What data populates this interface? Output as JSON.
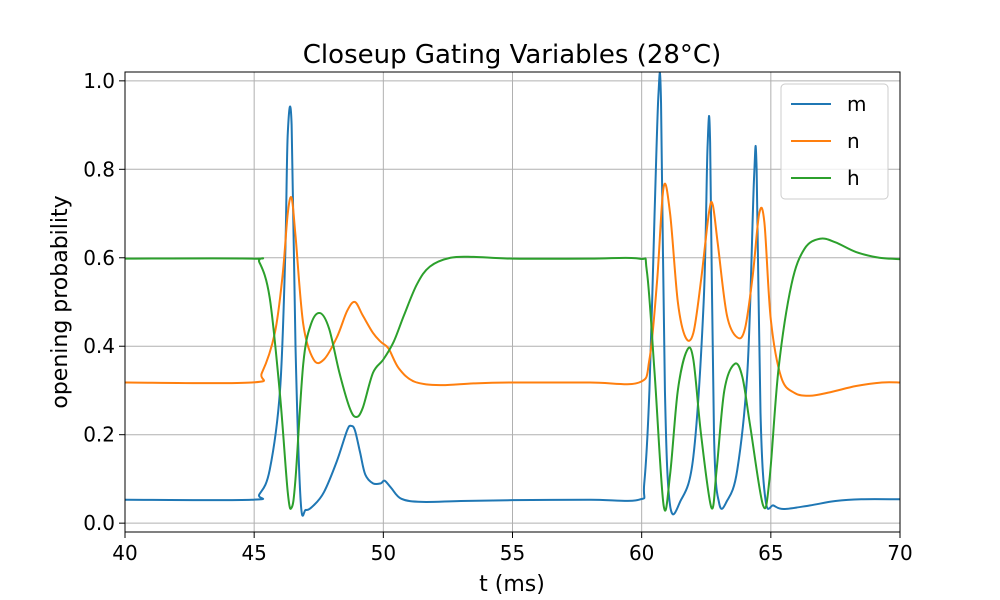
{
  "chart_data": {
    "type": "line",
    "title": "Closeup Gating Variables (28°C)",
    "xlabel": "t (ms)",
    "ylabel": "opening probability",
    "xlim": [
      40,
      70
    ],
    "ylim": [
      -0.02,
      1.02
    ],
    "xticks": [
      40,
      45,
      50,
      55,
      60,
      65,
      70
    ],
    "xtick_labels": [
      "40",
      "45",
      "50",
      "55",
      "60",
      "65",
      "70"
    ],
    "yticks": [
      0.0,
      0.2,
      0.4,
      0.6,
      0.8,
      1.0
    ],
    "ytick_labels": [
      "0.0",
      "0.2",
      "0.4",
      "0.6",
      "0.8",
      "1.0"
    ],
    "grid": true,
    "legend_position": "top-right",
    "series": [
      {
        "name": "m",
        "color": "#1f77b4",
        "x": [
          40,
          44.9,
          45.2,
          45.6,
          46.0,
          46.2,
          46.3,
          46.45,
          46.6,
          46.8,
          47.0,
          47.3,
          47.7,
          48.2,
          48.6,
          48.75,
          48.9,
          49.1,
          49.3,
          49.6,
          49.9,
          50.05,
          50.3,
          50.7,
          51.5,
          53,
          55,
          58,
          59.9,
          60.1,
          60.3,
          60.5,
          60.65,
          60.75,
          60.9,
          61.1,
          61.5,
          62.0,
          62.4,
          62.55,
          62.65,
          62.8,
          63.0,
          63.3,
          63.7,
          64.1,
          64.35,
          64.45,
          64.6,
          64.8,
          65.1,
          65.5,
          66.5,
          67.5,
          68.5,
          70
        ],
        "y": [
          0.053,
          0.053,
          0.065,
          0.12,
          0.3,
          0.6,
          0.88,
          0.9,
          0.4,
          0.05,
          0.03,
          0.04,
          0.07,
          0.14,
          0.21,
          0.22,
          0.21,
          0.16,
          0.11,
          0.09,
          0.09,
          0.096,
          0.08,
          0.055,
          0.048,
          0.05,
          0.052,
          0.053,
          0.053,
          0.09,
          0.3,
          0.7,
          0.97,
          0.95,
          0.3,
          0.04,
          0.05,
          0.15,
          0.5,
          0.85,
          0.86,
          0.2,
          0.045,
          0.05,
          0.12,
          0.35,
          0.78,
          0.8,
          0.25,
          0.05,
          0.04,
          0.032,
          0.04,
          0.05,
          0.054,
          0.054
        ]
      },
      {
        "name": "n",
        "color": "#ff7f0e",
        "x": [
          40,
          44.9,
          45.3,
          45.8,
          46.1,
          46.3,
          46.45,
          46.6,
          46.9,
          47.3,
          47.7,
          48.2,
          48.6,
          48.9,
          49.2,
          49.6,
          49.9,
          50.2,
          50.6,
          51.2,
          52.2,
          53.5,
          55,
          58,
          59.9,
          60.3,
          60.6,
          60.85,
          61.1,
          61.4,
          61.7,
          62.0,
          62.3,
          62.6,
          62.75,
          62.95,
          63.3,
          63.7,
          64.0,
          64.3,
          64.55,
          64.75,
          65.0,
          65.4,
          65.9,
          66.5,
          67.3,
          68.3,
          69.3,
          70
        ],
        "y": [
          0.318,
          0.318,
          0.34,
          0.43,
          0.56,
          0.7,
          0.735,
          0.65,
          0.45,
          0.37,
          0.37,
          0.42,
          0.48,
          0.5,
          0.47,
          0.43,
          0.41,
          0.395,
          0.35,
          0.32,
          0.312,
          0.316,
          0.318,
          0.318,
          0.318,
          0.37,
          0.55,
          0.76,
          0.7,
          0.5,
          0.42,
          0.43,
          0.55,
          0.7,
          0.72,
          0.63,
          0.47,
          0.42,
          0.44,
          0.56,
          0.7,
          0.68,
          0.46,
          0.33,
          0.295,
          0.288,
          0.296,
          0.31,
          0.318,
          0.318
        ]
      },
      {
        "name": "h",
        "color": "#2ca02c",
        "x": [
          40,
          44.9,
          45.2,
          45.6,
          46.0,
          46.3,
          46.45,
          46.6,
          46.9,
          47.2,
          47.55,
          47.9,
          48.3,
          48.7,
          48.95,
          49.2,
          49.6,
          50.0,
          50.4,
          50.8,
          51.3,
          51.8,
          52.6,
          53.5,
          55,
          58,
          59.9,
          60.2,
          60.5,
          60.85,
          61.1,
          61.4,
          61.75,
          62.0,
          62.3,
          62.7,
          62.9,
          63.2,
          63.6,
          63.9,
          64.2,
          64.7,
          64.95,
          65.3,
          65.8,
          66.3,
          66.9,
          67.5,
          68.3,
          69.2,
          70
        ],
        "y": [
          0.598,
          0.598,
          0.59,
          0.51,
          0.29,
          0.07,
          0.035,
          0.1,
          0.36,
          0.45,
          0.475,
          0.44,
          0.34,
          0.26,
          0.24,
          0.26,
          0.34,
          0.37,
          0.41,
          0.47,
          0.54,
          0.58,
          0.6,
          0.602,
          0.598,
          0.598,
          0.598,
          0.57,
          0.34,
          0.04,
          0.11,
          0.3,
          0.39,
          0.37,
          0.2,
          0.035,
          0.12,
          0.3,
          0.36,
          0.33,
          0.22,
          0.04,
          0.1,
          0.35,
          0.54,
          0.62,
          0.643,
          0.635,
          0.613,
          0.6,
          0.597
        ]
      }
    ]
  }
}
